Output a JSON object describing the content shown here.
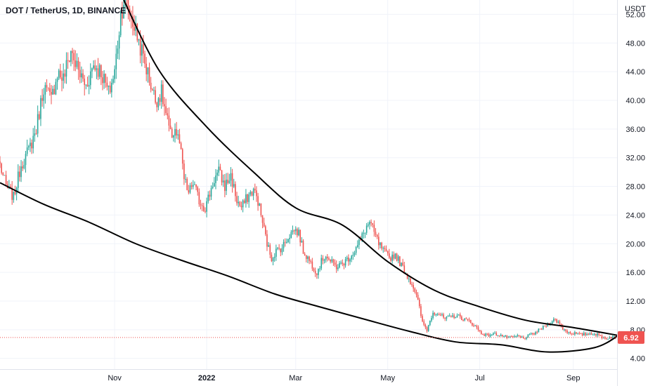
{
  "header": {
    "title": "DOT / TetherUS, 1D, BINANCE"
  },
  "price_axis": {
    "currency": "USDT"
  },
  "last_price": {
    "label": "6.92",
    "value": 6.92,
    "color": "#ef5350"
  },
  "colors": {
    "up": "#26a69a",
    "down": "#ef5350",
    "pattern_line": "#000000"
  },
  "chart_data": {
    "type": "candlestick",
    "title": "DOT / TetherUS, 1D, BINANCE",
    "ylabel": "USDT",
    "ylim": [
      2.5,
      54
    ],
    "xlim": [
      "2021-08-17",
      "2022-09-30"
    ],
    "y_ticks": [
      {
        "value": 52,
        "label": "52.00"
      },
      {
        "value": 48,
        "label": "48.00"
      },
      {
        "value": 44,
        "label": "44.00"
      },
      {
        "value": 40,
        "label": "40.00"
      },
      {
        "value": 36,
        "label": "36.00"
      },
      {
        "value": 32,
        "label": "32.00"
      },
      {
        "value": 28,
        "label": "28.00"
      },
      {
        "value": 24,
        "label": "24.00"
      },
      {
        "value": 20,
        "label": "20.00"
      },
      {
        "value": 16,
        "label": "16.00"
      },
      {
        "value": 12,
        "label": "12.00"
      },
      {
        "value": 8,
        "label": "8.00"
      },
      {
        "value": 4,
        "label": "4.00"
      }
    ],
    "x_ticks": [
      {
        "date": "2021-11-01",
        "label": "Nov"
      },
      {
        "date": "2022-01-01",
        "label": "2022"
      },
      {
        "date": "2022-03-01",
        "label": "Mar"
      },
      {
        "date": "2022-05-01",
        "label": "May"
      },
      {
        "date": "2022-07-01",
        "label": "Jul"
      },
      {
        "date": "2022-09-01",
        "label": "Sep"
      }
    ],
    "price_path": [
      [
        "2021-08-17",
        31
      ],
      [
        "2021-08-21",
        28
      ],
      [
        "2021-08-26",
        26.5
      ],
      [
        "2021-08-31",
        31
      ],
      [
        "2021-09-05",
        33
      ],
      [
        "2021-09-10",
        36
      ],
      [
        "2021-09-15",
        42
      ],
      [
        "2021-09-20",
        40
      ],
      [
        "2021-09-24",
        44
      ],
      [
        "2021-09-28",
        43
      ],
      [
        "2021-10-03",
        47
      ],
      [
        "2021-10-08",
        44
      ],
      [
        "2021-10-13",
        42
      ],
      [
        "2021-10-18",
        45
      ],
      [
        "2021-10-23",
        44
      ],
      [
        "2021-10-28",
        41
      ],
      [
        "2021-11-01",
        44
      ],
      [
        "2021-11-03",
        48
      ],
      [
        "2021-11-05",
        52
      ],
      [
        "2021-11-07",
        54
      ],
      [
        "2021-11-10",
        53
      ],
      [
        "2021-11-13",
        51
      ],
      [
        "2021-11-16",
        49
      ],
      [
        "2021-11-20",
        46
      ],
      [
        "2021-11-24",
        43
      ],
      [
        "2021-11-28",
        40
      ],
      [
        "2021-12-02",
        41
      ],
      [
        "2021-12-05",
        38
      ],
      [
        "2021-12-08",
        35
      ],
      [
        "2021-12-11",
        36
      ],
      [
        "2021-12-14",
        34
      ],
      [
        "2021-12-17",
        29
      ],
      [
        "2021-12-20",
        27
      ],
      [
        "2021-12-23",
        28.5
      ],
      [
        "2021-12-27",
        26
      ],
      [
        "2021-12-31",
        25
      ],
      [
        "2022-01-03",
        27
      ],
      [
        "2022-01-06",
        29
      ],
      [
        "2022-01-09",
        30
      ],
      [
        "2022-01-13",
        28
      ],
      [
        "2022-01-17",
        29.5
      ],
      [
        "2022-01-21",
        26
      ],
      [
        "2022-01-24",
        25
      ],
      [
        "2022-01-28",
        26.5
      ],
      [
        "2022-02-01",
        27.5
      ],
      [
        "2022-02-04",
        26
      ],
      [
        "2022-02-07",
        23
      ],
      [
        "2022-02-10",
        20
      ],
      [
        "2022-02-13",
        18
      ],
      [
        "2022-02-16",
        19
      ],
      [
        "2022-02-20",
        19.5
      ],
      [
        "2022-02-24",
        21
      ],
      [
        "2022-02-28",
        22
      ],
      [
        "2022-03-03",
        21.5
      ],
      [
        "2022-03-06",
        19
      ],
      [
        "2022-03-09",
        18
      ],
      [
        "2022-03-12",
        17
      ],
      [
        "2022-03-15",
        16
      ],
      [
        "2022-03-18",
        17.5
      ],
      [
        "2022-03-21",
        18.5
      ],
      [
        "2022-03-24",
        17.5
      ],
      [
        "2022-03-28",
        16.8
      ],
      [
        "2022-04-01",
        17.2
      ],
      [
        "2022-04-05",
        18
      ],
      [
        "2022-04-09",
        19
      ],
      [
        "2022-04-13",
        20.5
      ],
      [
        "2022-04-16",
        22
      ],
      [
        "2022-04-19",
        23
      ],
      [
        "2022-04-22",
        21.5
      ],
      [
        "2022-04-25",
        20
      ],
      [
        "2022-04-28",
        19
      ],
      [
        "2022-05-02",
        18
      ],
      [
        "2022-05-06",
        18.5
      ],
      [
        "2022-05-10",
        17
      ],
      [
        "2022-05-14",
        15.5
      ],
      [
        "2022-05-18",
        14
      ],
      [
        "2022-05-21",
        12
      ],
      [
        "2022-05-24",
        9
      ],
      [
        "2022-05-27",
        8
      ],
      [
        "2022-05-31",
        10.5
      ],
      [
        "2022-06-04",
        10.2
      ],
      [
        "2022-06-08",
        9.5
      ],
      [
        "2022-06-12",
        9.8
      ],
      [
        "2022-06-16",
        10
      ],
      [
        "2022-06-20",
        9.5
      ],
      [
        "2022-06-24",
        9.2
      ],
      [
        "2022-06-28",
        8.5
      ],
      [
        "2022-07-02",
        7.5
      ],
      [
        "2022-07-06",
        7.2
      ],
      [
        "2022-07-10",
        7.4
      ],
      [
        "2022-07-14",
        7.3
      ],
      [
        "2022-07-18",
        7
      ],
      [
        "2022-07-22",
        6.9
      ],
      [
        "2022-07-26",
        7.1
      ],
      [
        "2022-07-30",
        6.8
      ],
      [
        "2022-08-03",
        7.2
      ],
      [
        "2022-08-07",
        7.6
      ],
      [
        "2022-08-11",
        8.2
      ],
      [
        "2022-08-15",
        8.8
      ],
      [
        "2022-08-19",
        9.4
      ],
      [
        "2022-08-22",
        9.1
      ],
      [
        "2022-08-25",
        8.2
      ],
      [
        "2022-08-29",
        7.6
      ],
      [
        "2022-09-02",
        7.5
      ],
      [
        "2022-09-06",
        7.3
      ],
      [
        "2022-09-10",
        7.4
      ],
      [
        "2022-09-14",
        7.5
      ],
      [
        "2022-09-18",
        7.2
      ],
      [
        "2022-09-22",
        6.8
      ],
      [
        "2022-09-26",
        7
      ],
      [
        "2022-09-29",
        6.92
      ]
    ],
    "pattern_lines": [
      {
        "name": "upper",
        "points": [
          [
            "2021-11-07",
            54
          ],
          [
            "2021-12-01",
            44
          ],
          [
            "2022-01-01",
            36.3
          ],
          [
            "2022-02-01",
            30
          ],
          [
            "2022-03-01",
            25
          ],
          [
            "2022-04-01",
            22.6
          ],
          [
            "2022-05-01",
            17.5
          ],
          [
            "2022-06-01",
            13.5
          ],
          [
            "2022-07-01",
            11.2
          ],
          [
            "2022-08-01",
            9.3
          ],
          [
            "2022-09-01",
            8.3
          ],
          [
            "2022-10-01",
            7.2
          ]
        ]
      },
      {
        "name": "lower",
        "points": [
          [
            "2021-08-17",
            28.5
          ],
          [
            "2021-09-15",
            25.5
          ],
          [
            "2021-10-15",
            23
          ],
          [
            "2021-11-15",
            20
          ],
          [
            "2021-12-15",
            17.7
          ],
          [
            "2022-01-15",
            15.5
          ],
          [
            "2022-02-15",
            13
          ],
          [
            "2022-03-15",
            11.3
          ],
          [
            "2022-04-15",
            9.5
          ],
          [
            "2022-05-15",
            7.8
          ],
          [
            "2022-06-15",
            6.3
          ],
          [
            "2022-07-15",
            5.9
          ],
          [
            "2022-08-15",
            4.9
          ],
          [
            "2022-09-15",
            5.5
          ],
          [
            "2022-10-01",
            7.2
          ]
        ]
      }
    ]
  }
}
